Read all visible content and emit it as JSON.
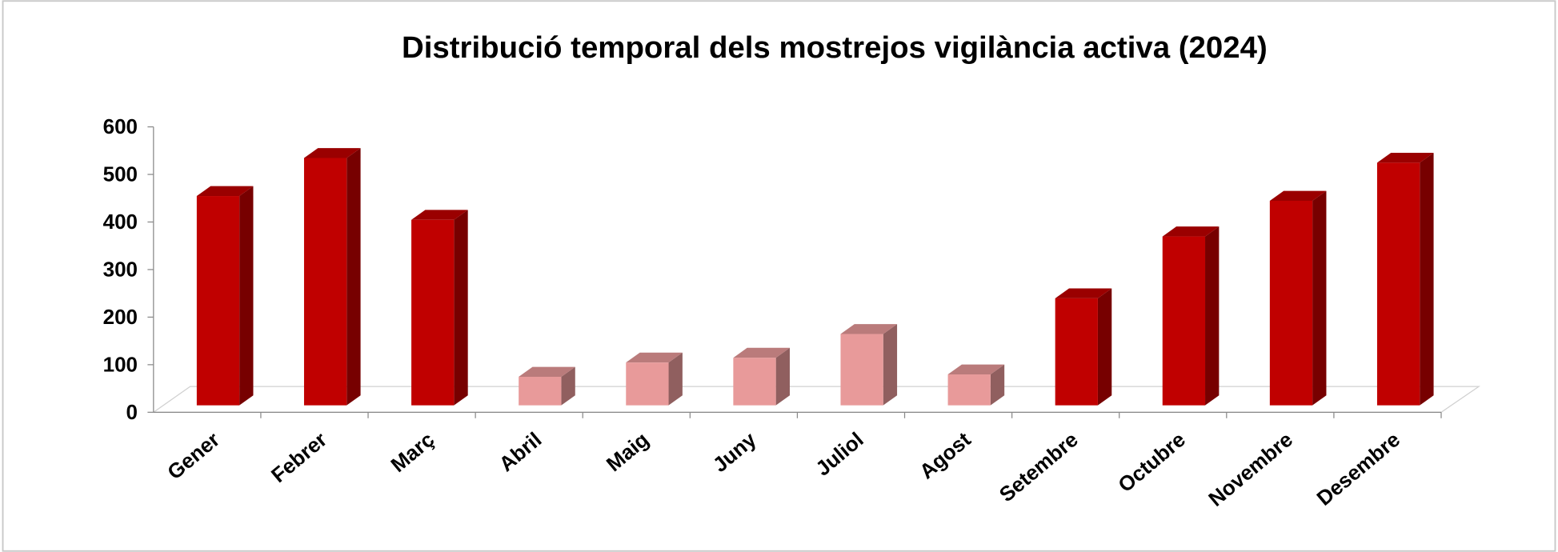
{
  "chart_data": {
    "type": "bar3d",
    "title": "Distribució temporal dels mostrejos vigilància activa (2024)",
    "categories": [
      "Gener",
      "Febrer",
      "Març",
      "Abril",
      "Maig",
      "Juny",
      "Juliol",
      "Agost",
      "Setembre",
      "Octubre",
      "Novembre",
      "Desembre"
    ],
    "values": [
      440,
      520,
      390,
      60,
      90,
      100,
      150,
      65,
      225,
      355,
      430,
      510
    ],
    "colors": [
      "#c00000",
      "#c00000",
      "#c00000",
      "#e89a9a",
      "#e89a9a",
      "#e89a9a",
      "#e89a9a",
      "#e89a9a",
      "#c00000",
      "#c00000",
      "#c00000",
      "#c00000"
    ],
    "ylim": [
      0,
      600
    ],
    "yticks": [
      0,
      100,
      200,
      300,
      400,
      500,
      600
    ]
  }
}
